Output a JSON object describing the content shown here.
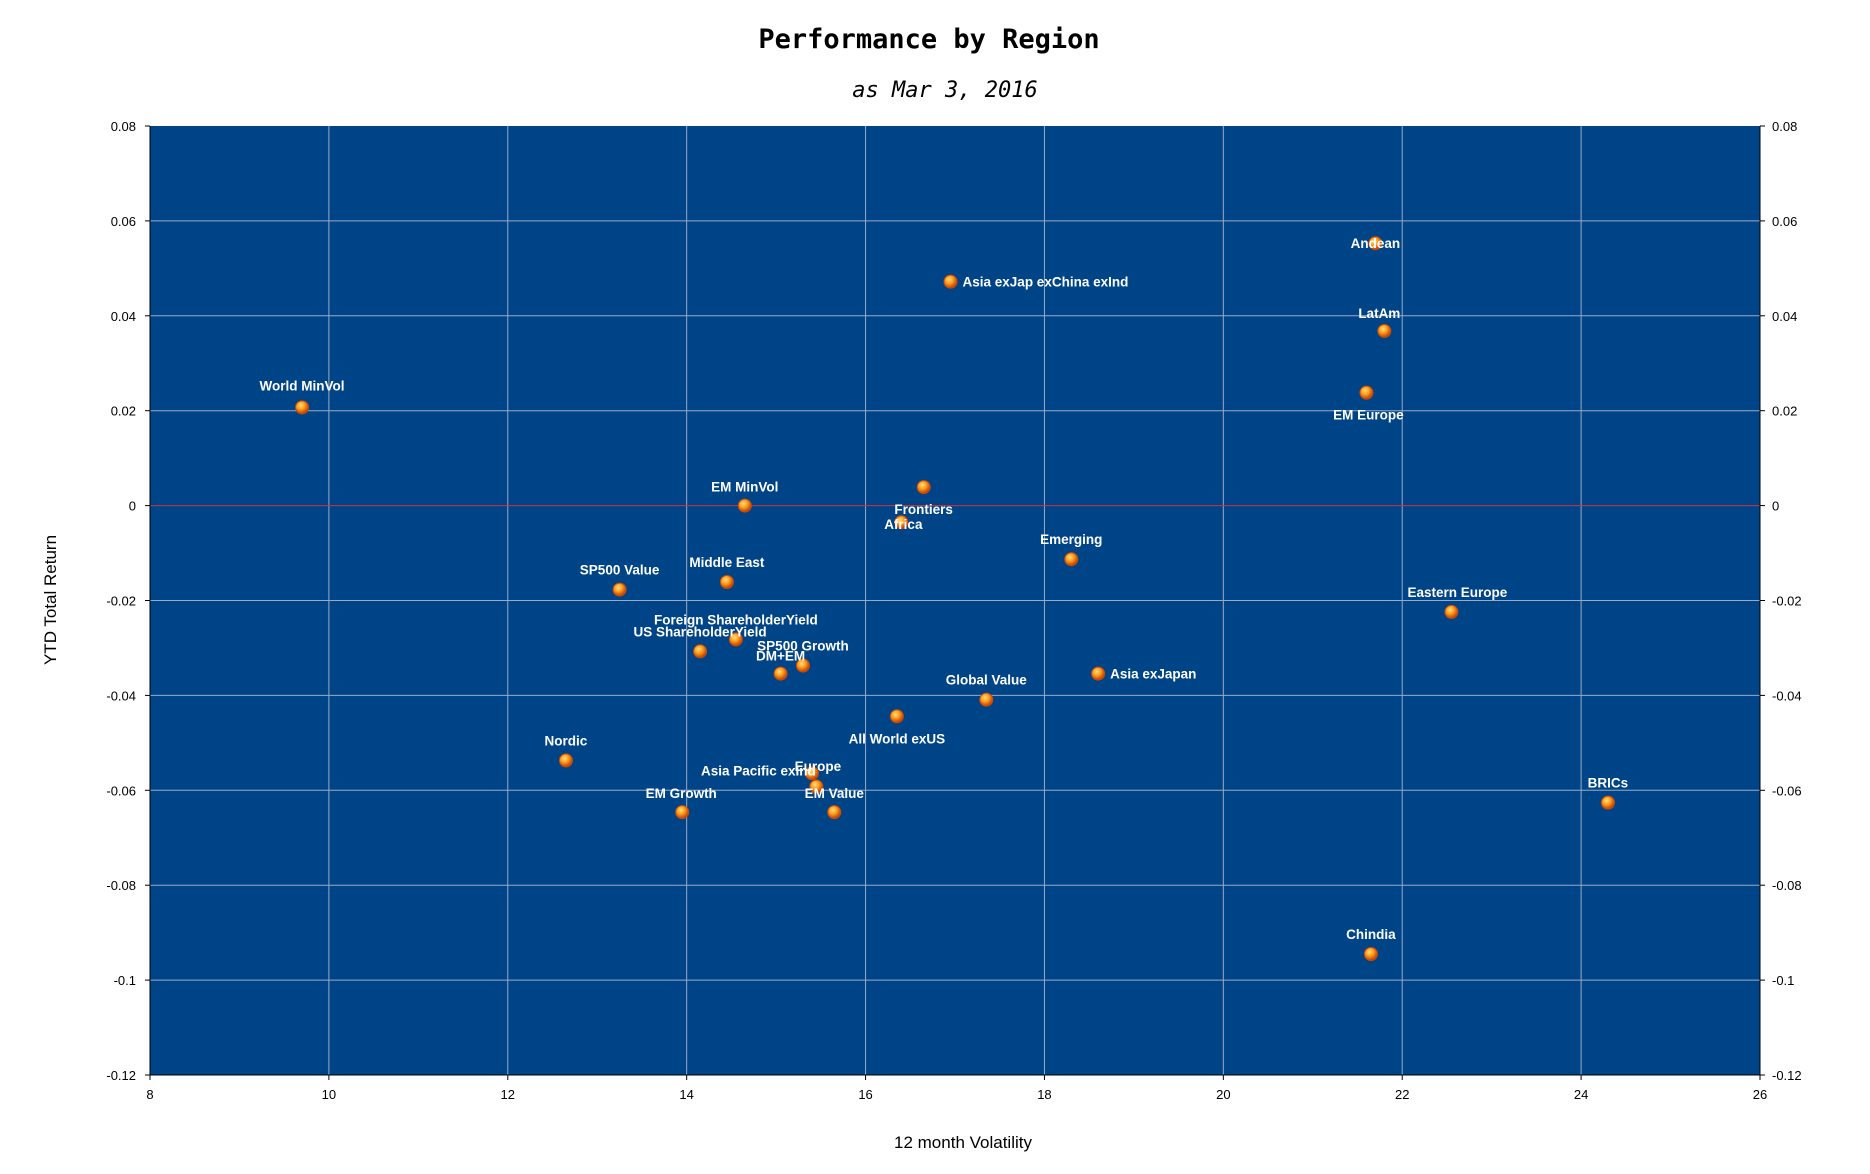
{
  "chart_data": {
    "type": "scatter",
    "title": "Performance by Region",
    "subtitle": "as Mar 3, 2016",
    "xlabel": "12 month Volatility",
    "ylabel": "YTD Total Return",
    "xlim": [
      8,
      26
    ],
    "ylim": [
      -0.12,
      0.08
    ],
    "x_ticks": [
      "8",
      "10",
      "12",
      "14",
      "16",
      "18",
      "20",
      "22",
      "24",
      "26"
    ],
    "y_ticks": [
      "0.08",
      "0.06",
      "0.04",
      "0.02",
      "0",
      "-0.02",
      "-0.04",
      "-0.06",
      "-0.08",
      "-0.1",
      "-0.12"
    ],
    "grid": true,
    "secondary_y_axis": true,
    "colors": {
      "plot_background": "#004488",
      "gridline": "#9aaac6",
      "zero_line": "#cc3344",
      "marker_outer": "#d04a00",
      "marker_inner": "#ffb020",
      "label": "#ffffff"
    },
    "points": [
      {
        "name": "World MinVol",
        "x": 9.7,
        "y": 0.0207
      },
      {
        "name": "Asia exJap exChina exInd",
        "x": 16.95,
        "y": 0.0472
      },
      {
        "name": "Andean",
        "x": 21.7,
        "y": 0.0553
      },
      {
        "name": "LatAm",
        "x": 21.8,
        "y": 0.0368
      },
      {
        "name": "EM Europe",
        "x": 21.6,
        "y": 0.0238
      },
      {
        "name": "EM MinVol",
        "x": 14.65,
        "y": 0.0
      },
      {
        "name": "Frontiers",
        "x": 16.65,
        "y": 0.0039
      },
      {
        "name": "Africa",
        "x": 16.4,
        "y": -0.0035
      },
      {
        "name": "Emerging",
        "x": 18.3,
        "y": -0.0113
      },
      {
        "name": "Middle East",
        "x": 14.45,
        "y": -0.0161
      },
      {
        "name": "SP500 Value",
        "x": 13.25,
        "y": -0.0177
      },
      {
        "name": "Eastern Europe",
        "x": 22.55,
        "y": -0.0224
      },
      {
        "name": "Foreign ShareholderYield",
        "x": 14.55,
        "y": -0.0282
      },
      {
        "name": "US ShareholderYield",
        "x": 14.15,
        "y": -0.0307
      },
      {
        "name": "SP500 Growth",
        "x": 15.3,
        "y": -0.0337
      },
      {
        "name": "DM+EM",
        "x": 15.05,
        "y": -0.0354
      },
      {
        "name": "Asia exJapan",
        "x": 18.6,
        "y": -0.0354
      },
      {
        "name": "Global Value",
        "x": 17.35,
        "y": -0.0409
      },
      {
        "name": "All World exUS",
        "x": 16.35,
        "y": -0.0444
      },
      {
        "name": "Nordic",
        "x": 12.65,
        "y": -0.0537
      },
      {
        "name": "Europe",
        "x": 15.4,
        "y": -0.0564
      },
      {
        "name": "Asia Pacific exInd",
        "x": 15.45,
        "y": -0.0592
      },
      {
        "name": "EM Growth",
        "x": 13.95,
        "y": -0.0646
      },
      {
        "name": "EM Value",
        "x": 15.65,
        "y": -0.0646
      },
      {
        "name": "BRICs",
        "x": 24.3,
        "y": -0.0626
      },
      {
        "name": "Chindia",
        "x": 21.65,
        "y": -0.0945
      }
    ]
  }
}
